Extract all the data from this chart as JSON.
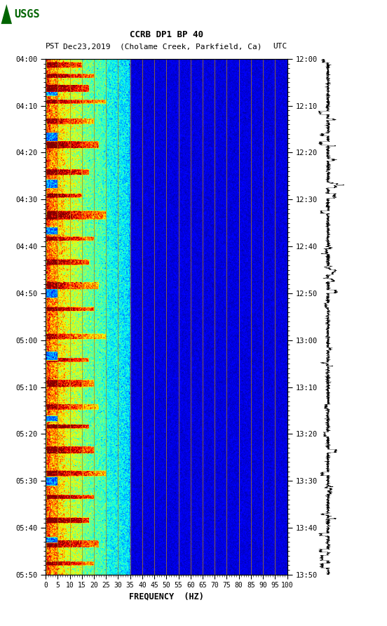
{
  "title_line1": "CCRB DP1 BP 40",
  "title_line2_pst": "PST",
  "title_line2_date": "Dec23,2019",
  "title_line2_loc": "(Cholame Creek, Parkfield, Ca)",
  "title_line2_utc": "UTC",
  "xlabel": "FREQUENCY  (HZ)",
  "freq_min": 0,
  "freq_max": 100,
  "freq_ticks": [
    0,
    5,
    10,
    15,
    20,
    25,
    30,
    35,
    40,
    45,
    50,
    55,
    60,
    65,
    70,
    75,
    80,
    85,
    90,
    95,
    100
  ],
  "left_time_labels": [
    "04:00",
    "04:10",
    "04:20",
    "04:30",
    "04:40",
    "04:50",
    "05:00",
    "05:10",
    "05:20",
    "05:30",
    "05:40",
    "05:50"
  ],
  "right_time_labels": [
    "12:00",
    "12:10",
    "12:20",
    "12:30",
    "12:40",
    "12:50",
    "13:00",
    "13:10",
    "13:20",
    "13:30",
    "13:40",
    "13:50"
  ],
  "n_time_bins": 660,
  "n_freq_bins": 400,
  "bg_color": "white",
  "spectrogram_cmap": "jet",
  "vertical_line_color": "#b8860b",
  "vertical_line_freq": [
    5,
    10,
    15,
    20,
    25,
    30,
    35,
    40,
    45,
    50,
    55,
    60,
    65,
    70,
    75,
    80,
    85,
    90,
    95
  ],
  "power_scale_min": -2.5,
  "power_scale_max": 3.5,
  "usgs_green": "#006400"
}
